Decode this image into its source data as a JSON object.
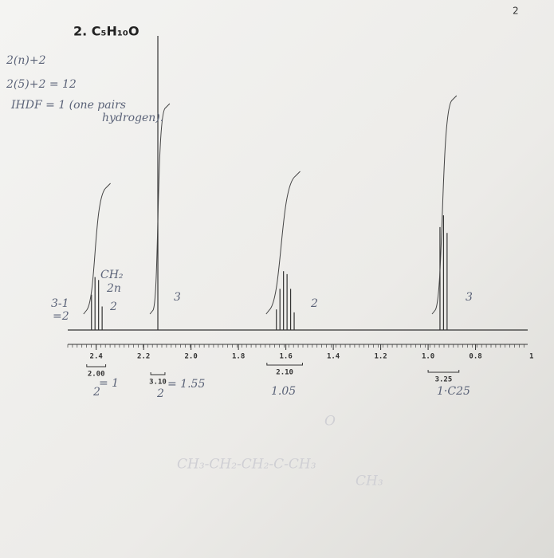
{
  "page_number": "2",
  "chart_data": {
    "type": "stem",
    "title": "2. C₅H₁₀O",
    "x": [
      2.42,
      2.405,
      2.39,
      2.375,
      2.14,
      1.64,
      1.625,
      1.61,
      1.595,
      1.58,
      1.565,
      0.95,
      0.935,
      0.92
    ],
    "values": [
      12,
      18,
      17,
      8,
      100,
      7,
      14,
      20,
      19,
      14,
      6,
      35,
      39,
      33
    ],
    "color": "#333333",
    "xlim": [
      2.52,
      0.58
    ],
    "ylim": [
      0,
      100
    ],
    "xticks": [
      2.4,
      2.2,
      2.0,
      1.8,
      1.6,
      1.4,
      1.2,
      1.0,
      0.8
    ],
    "axis_end_label": "1",
    "integrals": [
      {
        "x": [
          2.44,
          2.36
        ],
        "value": {
          "value": 2,
          "label": "2.00"
        }
      },
      {
        "x": [
          2.17,
          2.11
        ],
        "value": {
          "value": 3.1,
          "label": "3.10"
        }
      },
      {
        "x": [
          1.68,
          1.53
        ],
        "value": {
          "value": 2.1,
          "label": "2.10"
        }
      },
      {
        "x": [
          1.0,
          0.87
        ],
        "value": {
          "value": 3.25,
          "label": "3.25"
        }
      }
    ]
  },
  "handwriting": [
    "2(n)+2",
    "2(5)+2 = 12",
    "IHDF = 1 (one pairs",
    "hydrogen).",
    "CH₂",
    "2n",
    "2",
    "3-1",
    "=2",
    "3",
    "2",
    "3",
    "= 1",
    "2",
    "= 1.55",
    "2",
    "1.05",
    "1·C25",
    "O",
    "CH₃-CH₂-CH₂-C-CH₃",
    "CH₃"
  ]
}
